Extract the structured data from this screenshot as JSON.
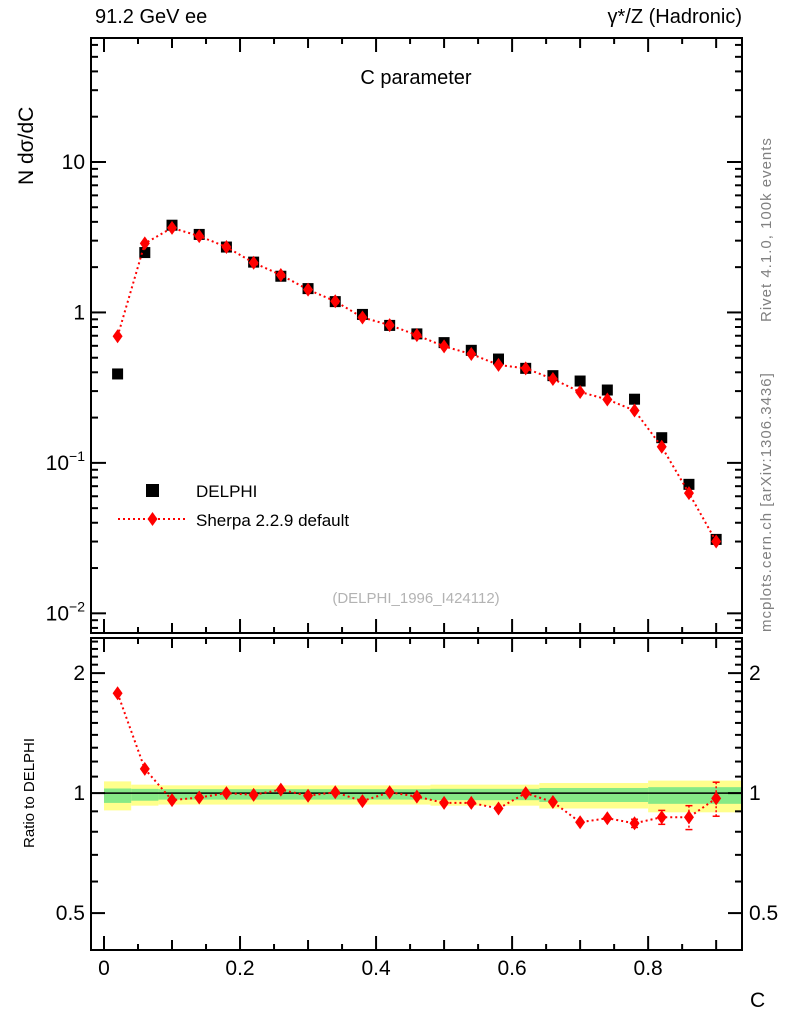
{
  "header": {
    "left": "91.2 GeV ee",
    "right": "γ*/Z (Hadronic)"
  },
  "side_texts": {
    "rivet": "Rivet 4.1.0,  100k events",
    "mcplots": "mcplots.cern.ch [arXiv:1306.3436]"
  },
  "watermark": "(DELPHI_1996_I424112)",
  "legend": {
    "items": [
      {
        "label": "DELPHI",
        "marker": "black-square"
      },
      {
        "label": "Sherpa 2.2.9 default",
        "marker": "red-diamond-dotted"
      }
    ]
  },
  "colors": {
    "data": "#000000",
    "mc": "#ff0000",
    "band_yellow": "#ffff8c",
    "band_green": "#86e986",
    "gray_text": "#808080",
    "watermark_gray": "#b3b3b3"
  },
  "chart_data": {
    "type": "line",
    "title": "C parameter",
    "xlabel": "C",
    "ylabel": "N  dσ/dC",
    "ratio_ylabel": "Ratio to DELPHI",
    "bin_width": 0.04,
    "x": [
      0.02,
      0.06,
      0.1,
      0.14,
      0.18,
      0.22,
      0.26,
      0.3,
      0.34,
      0.38,
      0.42,
      0.46,
      0.5,
      0.54,
      0.58,
      0.62,
      0.66,
      0.7,
      0.74,
      0.78,
      0.82,
      0.86,
      0.9
    ],
    "series": [
      {
        "name": "DELPHI",
        "marker": "square",
        "color": "#000000",
        "values": [
          0.39,
          2.5,
          3.8,
          3.3,
          2.72,
          2.16,
          1.74,
          1.44,
          1.18,
          0.97,
          0.82,
          0.72,
          0.63,
          0.56,
          0.49,
          0.425,
          0.38,
          0.35,
          0.305,
          0.265,
          0.147,
          0.072,
          0.031
        ]
      },
      {
        "name": "Sherpa 2.2.9 default",
        "marker": "diamond",
        "color": "#ff0000",
        "linestyle": "dotted",
        "values": [
          0.694,
          2.875,
          3.648,
          3.218,
          2.72,
          2.138,
          1.775,
          1.418,
          1.186,
          0.926,
          0.824,
          0.706,
          0.595,
          0.529,
          0.448,
          0.425,
          0.361,
          0.296,
          0.264,
          0.223,
          0.128,
          0.063,
          0.03
        ]
      }
    ],
    "ratio": {
      "name": "Sherpa/DELPHI",
      "values": [
        1.78,
        1.15,
        0.96,
        0.975,
        1.0,
        0.99,
        1.02,
        0.985,
        1.005,
        0.955,
        1.005,
        0.98,
        0.945,
        0.945,
        0.915,
        1.0,
        0.95,
        0.845,
        0.865,
        0.84,
        0.87,
        0.87,
        0.97
      ],
      "errors": [
        0,
        0,
        0,
        0,
        0,
        0,
        0,
        0,
        0,
        0,
        0,
        0,
        0,
        0,
        0,
        0,
        0,
        0,
        0,
        0.02,
        0.035,
        0.06,
        0.095
      ]
    },
    "bands": [
      {
        "c0": 0.0,
        "c1": 0.04,
        "yellow": [
          0.905,
          1.07
        ],
        "green": [
          0.945,
          1.027
        ]
      },
      {
        "c0": 0.04,
        "c1": 0.08,
        "yellow": [
          0.93,
          1.05
        ],
        "green": [
          0.957,
          1.025
        ]
      },
      {
        "c0": 0.08,
        "c1": 0.48,
        "yellow": [
          0.936,
          1.046
        ],
        "green": [
          0.963,
          1.023
        ]
      },
      {
        "c0": 0.48,
        "c1": 0.64,
        "yellow": [
          0.93,
          1.05
        ],
        "green": [
          0.96,
          1.025
        ]
      },
      {
        "c0": 0.64,
        "c1": 0.8,
        "yellow": [
          0.915,
          1.06
        ],
        "green": [
          0.95,
          1.03
        ]
      },
      {
        "c0": 0.8,
        "c1": 0.938,
        "yellow": [
          0.895,
          1.075
        ],
        "green": [
          0.94,
          1.035
        ]
      }
    ],
    "axes": {
      "x": {
        "min": -0.0191,
        "max": 0.938,
        "minor_step": 0.05,
        "ticks": [
          {
            "v": 0,
            "label": "0"
          },
          {
            "v": 0.2,
            "label": "0.2"
          },
          {
            "v": 0.4,
            "label": "0.4"
          },
          {
            "v": 0.6,
            "label": "0.6"
          },
          {
            "v": 0.8,
            "label": "0.8"
          }
        ]
      },
      "y": {
        "scale": "log",
        "min": 0.0074,
        "max": 66.7,
        "ticks": [
          {
            "v": 10,
            "base": "10",
            "exp": ""
          },
          {
            "v": 1,
            "base": "1",
            "exp": ""
          },
          {
            "v": 0.1,
            "base": "10",
            "exp": "−1"
          },
          {
            "v": 0.01,
            "base": "10",
            "exp": "−2"
          }
        ]
      },
      "ratio_y": {
        "scale": "log",
        "min": 0.404,
        "max": 2.45,
        "ticks": [
          {
            "v": 2,
            "label": "2"
          },
          {
            "v": 1,
            "label": "1"
          },
          {
            "v": 0.5,
            "label": "0.5"
          }
        ]
      }
    }
  }
}
